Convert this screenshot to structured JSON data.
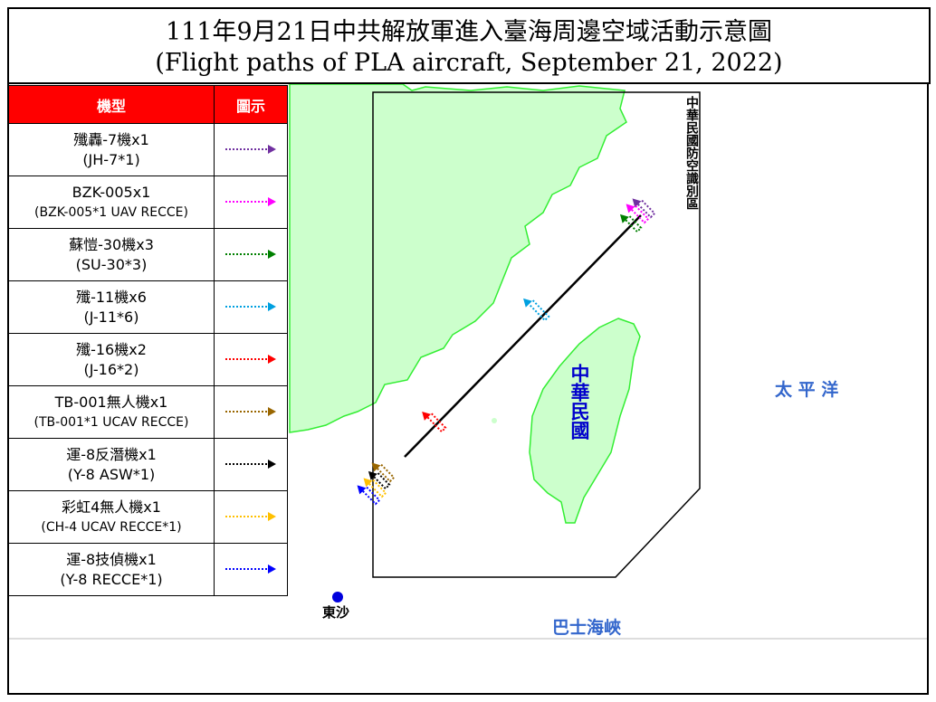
{
  "title": {
    "line1": "111年9月21日中共解放軍進入臺海周邊空域活動示意圖",
    "line2": "(Flight paths of PLA aircraft, September 21, 2022)"
  },
  "legend": {
    "header": {
      "type": "機型",
      "symbol": "圖示"
    },
    "header_color": "#ff0000",
    "items": [
      {
        "zh": "殲轟-7機x1",
        "en": "(JH-7*1)",
        "color": "#7030a0"
      },
      {
        "zh": "BZK-005x1",
        "en": "(BZK-005*1 UAV RECCE)",
        "color": "#ff00ff"
      },
      {
        "zh": "蘇愷-30機x3",
        "en": "(SU-30*3)",
        "color": "#008000"
      },
      {
        "zh": "殲-11機x6",
        "en": "(J-11*6)",
        "color": "#00a0e0"
      },
      {
        "zh": "殲-16機x2",
        "en": "(J-16*2)",
        "color": "#ff0000"
      },
      {
        "zh": "TB-001無人機x1",
        "en": "(TB-001*1 UCAV RECCE)",
        "color": "#996600"
      },
      {
        "zh": "運-8反潛機x1",
        "en": "(Y-8 ASW*1)",
        "color": "#000000"
      },
      {
        "zh": "彩虹4無人機x1",
        "en": "(CH-4 UCAV RECCE*1)",
        "color": "#ffc000"
      },
      {
        "zh": "運-8技偵機x1",
        "en": "(Y-8 RECCE*1)",
        "color": "#0000ff"
      }
    ]
  },
  "map": {
    "adiz_label": "中華民國防空識別區",
    "taiwan_label": "中華民國",
    "pacific_label": "太 平 洋",
    "bashi_label": "巴士海峽",
    "dongsha_label": "東沙",
    "land_color": "#ccffcc",
    "coast_color": "#33ee33",
    "label_color": "#0000cc"
  }
}
